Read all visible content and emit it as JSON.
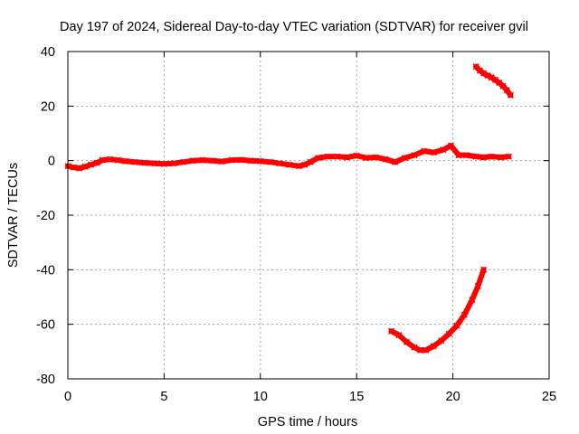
{
  "chart_data": {
    "type": "scatter",
    "title": "Day 197 of 2024, Sidereal Day-to-day VTEC variation (SDTVAR) for receiver gvil",
    "xlabel": "GPS time / hours",
    "ylabel": "SDTVAR / TECUs",
    "xlim": [
      0,
      25
    ],
    "ylim": [
      -80,
      40
    ],
    "xticks": [
      0,
      5,
      10,
      15,
      20,
      25
    ],
    "yticks": [
      -80,
      -60,
      -40,
      -20,
      0,
      20,
      40
    ],
    "grid": true,
    "series": [
      {
        "name": "main",
        "color": "#ff0000",
        "x": [
          0.0,
          0.3,
          0.6,
          0.9,
          1.2,
          1.5,
          1.8,
          2.2,
          2.6,
          3.0,
          3.5,
          4.0,
          4.5,
          5.0,
          5.5,
          6.0,
          6.5,
          7.0,
          7.5,
          8.0,
          8.5,
          9.0,
          9.5,
          10.0,
          10.5,
          11.0,
          11.5,
          12.0,
          12.3,
          12.6,
          13.0,
          13.5,
          14.0,
          14.5,
          15.0,
          15.5,
          16.0,
          16.5,
          17.0,
          17.5,
          18.0,
          18.5,
          19.0,
          19.5,
          19.9,
          20.3,
          20.7,
          21.2,
          21.6,
          22.0,
          22.5,
          22.9
        ],
        "y": [
          -2.0,
          -2.5,
          -2.8,
          -2.2,
          -1.5,
          -0.8,
          0.2,
          0.5,
          0.2,
          -0.2,
          -0.5,
          -0.8,
          -1.0,
          -1.2,
          -1.0,
          -0.5,
          0.0,
          0.2,
          0.0,
          -0.3,
          0.2,
          0.3,
          0.0,
          -0.2,
          -0.5,
          -1.0,
          -1.5,
          -2.0,
          -1.5,
          -0.5,
          1.0,
          1.5,
          1.5,
          1.2,
          1.8,
          1.0,
          1.2,
          0.5,
          -0.5,
          1.0,
          2.0,
          3.5,
          3.0,
          4.0,
          5.5,
          2.0,
          2.0,
          1.5,
          1.2,
          1.5,
          1.2,
          1.5
        ]
      },
      {
        "name": "upper-arc",
        "color": "#ff0000",
        "x": [
          21.2,
          21.4,
          21.6,
          21.8,
          22.0,
          22.2,
          22.4,
          22.6,
          22.8,
          23.0
        ],
        "y": [
          34.5,
          33.0,
          32.0,
          31.2,
          30.5,
          29.6,
          28.6,
          27.4,
          25.8,
          24.0
        ]
      },
      {
        "name": "lower-arc",
        "color": "#ff0000",
        "x": [
          16.8,
          17.2,
          17.6,
          18.0,
          18.3,
          18.6,
          19.0,
          19.4,
          19.8,
          20.2,
          20.6,
          21.0,
          21.3,
          21.6
        ],
        "y": [
          -62.5,
          -64.0,
          -66.5,
          -68.5,
          -69.5,
          -69.5,
          -68.0,
          -66.0,
          -63.5,
          -60.5,
          -56.5,
          -51.0,
          -46.0,
          -40.0
        ]
      }
    ]
  }
}
